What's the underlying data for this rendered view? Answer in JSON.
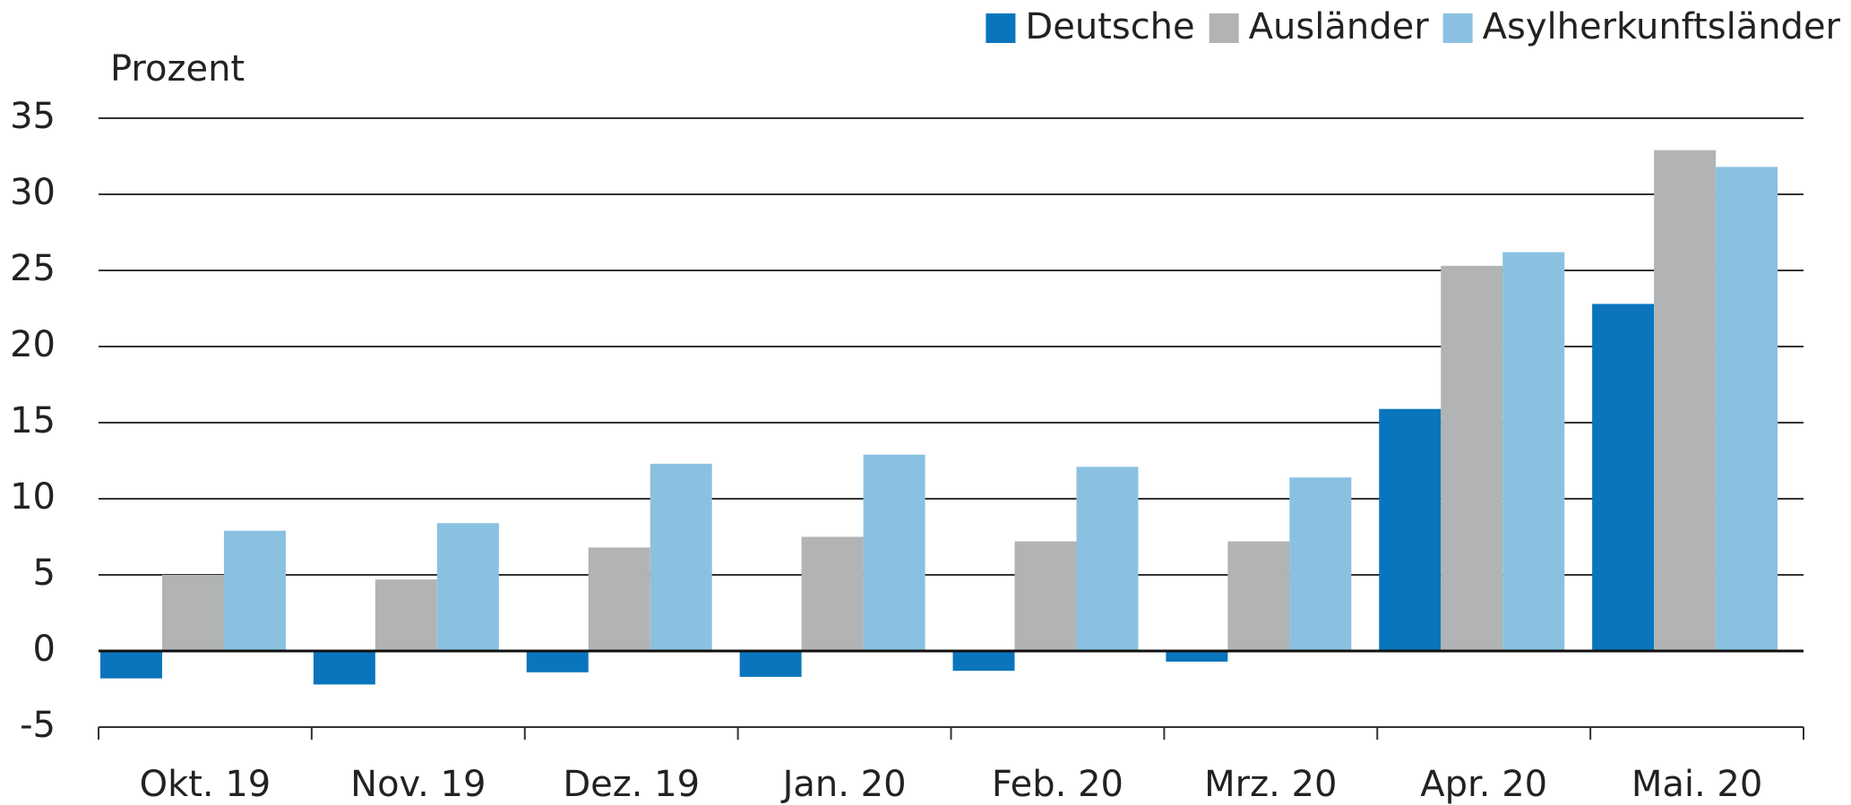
{
  "chart_data": {
    "type": "bar",
    "y_label": "Prozent",
    "categories": [
      "Okt. 19",
      "Nov. 19",
      "Dez. 19",
      "Jan. 20",
      "Feb. 20",
      "Mrz. 20",
      "Apr. 20",
      "Mai. 20"
    ],
    "series": [
      {
        "name": "Deutsche",
        "color": "#0a75bc",
        "values": [
          -1.8,
          -2.2,
          -1.4,
          -1.7,
          -1.3,
          -0.7,
          15.9,
          22.8
        ]
      },
      {
        "name": "Ausländer",
        "color": "#b1b3b4",
        "values": [
          5.0,
          4.7,
          6.8,
          7.5,
          7.2,
          7.2,
          25.3,
          32.9
        ]
      },
      {
        "name": "Asylherkunftsländer",
        "color": "#8bc1e0",
        "values": [
          7.9,
          8.4,
          12.3,
          12.9,
          12.1,
          11.4,
          26.2,
          31.8
        ]
      }
    ],
    "ylim": [
      -5,
      35
    ],
    "yticks": [
      -5,
      0,
      5,
      10,
      15,
      20,
      25,
      30,
      35
    ],
    "grid": true,
    "legend": "top-right"
  }
}
